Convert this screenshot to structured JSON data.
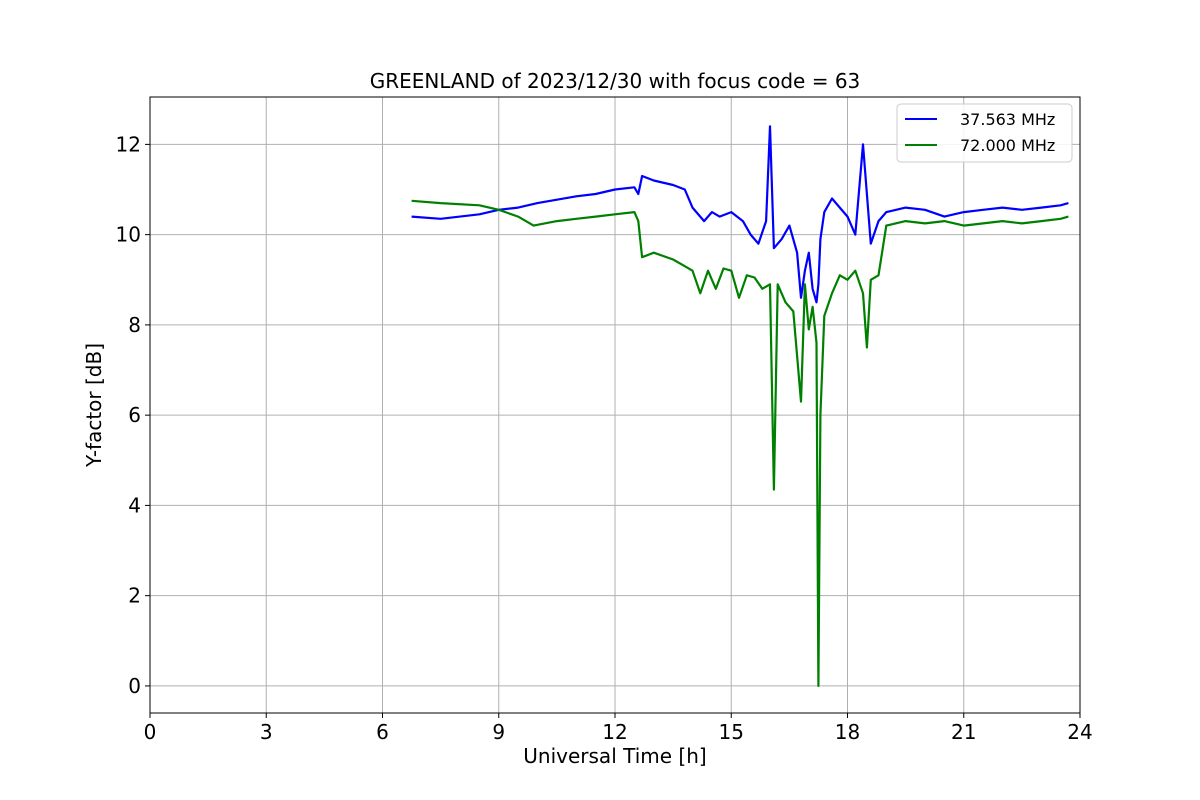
{
  "chart_data": {
    "type": "line",
    "title": "GREENLAND of 2023/12/30 with focus code = 63",
    "xlabel": "Universal Time [h]",
    "ylabel": "Y-factor [dB]",
    "xlim": [
      0,
      24
    ],
    "ylim": [
      -0.6,
      13.05
    ],
    "xticks": [
      0,
      3,
      6,
      9,
      12,
      15,
      18,
      21,
      24
    ],
    "yticks": [
      0,
      2,
      4,
      6,
      8,
      10,
      12
    ],
    "grid": true,
    "legend_position": "top-right",
    "series": [
      {
        "name": "37.563 MHz",
        "color": "#0000ff",
        "x": [
          6.75,
          7.5,
          8.5,
          9.0,
          9.5,
          10.0,
          11.0,
          11.5,
          12.0,
          12.5,
          12.6,
          12.7,
          13.0,
          13.5,
          13.8,
          14.0,
          14.3,
          14.5,
          14.7,
          15.0,
          15.3,
          15.5,
          15.7,
          15.9,
          16.0,
          16.1,
          16.3,
          16.5,
          16.7,
          16.8,
          16.9,
          17.0,
          17.1,
          17.2,
          17.25,
          17.3,
          17.4,
          17.6,
          17.8,
          18.0,
          18.2,
          18.4,
          18.6,
          18.8,
          19.0,
          19.5,
          20.0,
          20.5,
          21.0,
          21.5,
          22.0,
          22.5,
          23.0,
          23.5,
          23.7
        ],
        "y": [
          10.4,
          10.35,
          10.45,
          10.55,
          10.6,
          10.7,
          10.85,
          10.9,
          11.0,
          11.05,
          10.9,
          11.3,
          11.2,
          11.1,
          11.0,
          10.6,
          10.3,
          10.5,
          10.4,
          10.5,
          10.3,
          10.0,
          9.8,
          10.3,
          12.4,
          9.7,
          9.9,
          10.2,
          9.6,
          8.6,
          9.2,
          9.6,
          8.8,
          8.5,
          8.9,
          9.9,
          10.5,
          10.8,
          10.6,
          10.4,
          10.0,
          12.0,
          9.8,
          10.3,
          10.5,
          10.6,
          10.55,
          10.4,
          10.5,
          10.55,
          10.6,
          10.55,
          10.6,
          10.65,
          10.7
        ]
      },
      {
        "name": "72.000 MHz",
        "color": "#008000",
        "x": [
          6.75,
          7.5,
          8.5,
          9.0,
          9.5,
          9.9,
          10.5,
          11.0,
          11.5,
          12.0,
          12.5,
          12.6,
          12.7,
          13.0,
          13.5,
          13.8,
          14.0,
          14.2,
          14.4,
          14.6,
          14.8,
          15.0,
          15.2,
          15.4,
          15.6,
          15.8,
          16.0,
          16.1,
          16.2,
          16.4,
          16.6,
          16.8,
          16.9,
          17.0,
          17.1,
          17.2,
          17.25,
          17.3,
          17.4,
          17.6,
          17.8,
          18.0,
          18.2,
          18.4,
          18.5,
          18.6,
          18.8,
          19.0,
          19.5,
          20.0,
          20.5,
          21.0,
          21.5,
          22.0,
          22.5,
          23.0,
          23.5,
          23.7
        ],
        "y": [
          10.75,
          10.7,
          10.65,
          10.55,
          10.4,
          10.2,
          10.3,
          10.35,
          10.4,
          10.45,
          10.5,
          10.3,
          9.5,
          9.6,
          9.45,
          9.3,
          9.2,
          8.7,
          9.2,
          8.8,
          9.25,
          9.2,
          8.6,
          9.1,
          9.05,
          8.8,
          8.9,
          4.35,
          8.9,
          8.5,
          8.3,
          6.3,
          8.9,
          7.9,
          8.4,
          7.6,
          0.0,
          6.0,
          8.2,
          8.7,
          9.1,
          9.0,
          9.2,
          8.7,
          7.5,
          9.0,
          9.1,
          10.2,
          10.3,
          10.25,
          10.3,
          10.2,
          10.25,
          10.3,
          10.25,
          10.3,
          10.35,
          10.4
        ]
      }
    ]
  }
}
